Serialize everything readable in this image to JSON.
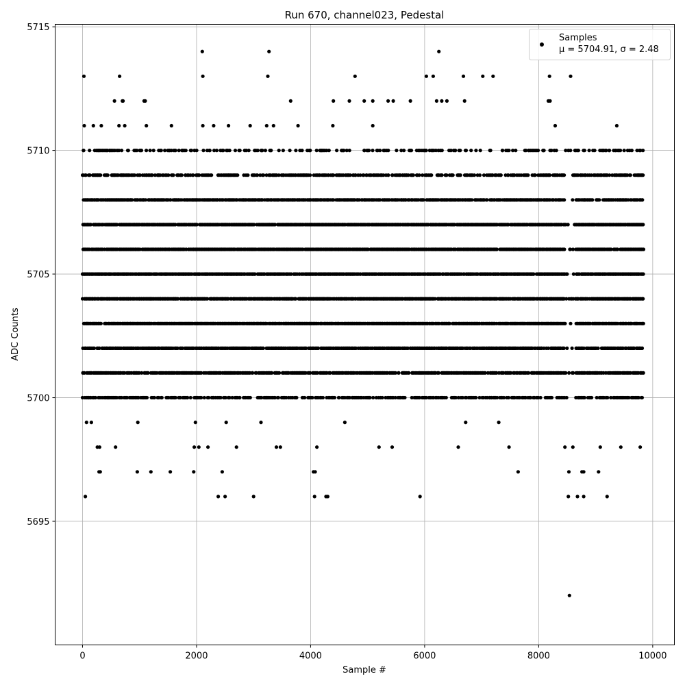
{
  "chart_data": {
    "type": "scatter",
    "title": "Run 670, channel023, Pedestal",
    "xlabel": "Sample #",
    "ylabel": "ADC Counts",
    "xlim": [
      -480,
      10380
    ],
    "ylim": [
      5690,
      5715.1
    ],
    "xticks": [
      0,
      2000,
      4000,
      6000,
      8000,
      10000
    ],
    "xtick_labels": [
      "0",
      "2000",
      "4000",
      "6000",
      "8000",
      "10000"
    ],
    "yticks": [
      5695,
      5700,
      5705,
      5710,
      5715
    ],
    "ytick_labels": [
      "5695",
      "5700",
      "5705",
      "5710",
      "5715"
    ],
    "grid": true,
    "legend_position": "top-right",
    "series": [
      {
        "name": "Samples",
        "legend_stats": "μ = 5704.91, σ = 2.48",
        "color": "#000000",
        "marker": "circle",
        "n_samples": 9840,
        "sample_range": [
          0,
          9839
        ],
        "value_levels": [
          5703,
          5704,
          5705,
          5706,
          5707,
          5702,
          5708,
          5701,
          5700,
          5709,
          5699,
          5710,
          5698,
          5711,
          5697,
          5712,
          5696,
          5713,
          5714
        ],
        "level_density": [
          0.9,
          0.9,
          0.9,
          0.9,
          0.88,
          0.82,
          0.8,
          0.72,
          0.55,
          0.58,
          0.18,
          0.3,
          0.08,
          0.12,
          0.05,
          0.05,
          0.03,
          0.03,
          0.01
        ],
        "points": [
          [
            20,
            5710
          ],
          [
            25,
            5713
          ],
          [
            30,
            5711
          ],
          [
            50,
            5696
          ],
          [
            70,
            5699
          ],
          [
            155,
            5699
          ],
          [
            190,
            5711
          ],
          [
            260,
            5698
          ],
          [
            290,
            5697
          ],
          [
            300,
            5698
          ],
          [
            310,
            5697
          ],
          [
            330,
            5711
          ],
          [
            560,
            5712
          ],
          [
            580,
            5698
          ],
          [
            640,
            5711
          ],
          [
            650,
            5713
          ],
          [
            700,
            5712
          ],
          [
            710,
            5712
          ],
          [
            740,
            5711
          ],
          [
            970,
            5699
          ],
          [
            960,
            5697
          ],
          [
            1080,
            5712
          ],
          [
            1100,
            5712
          ],
          [
            1120,
            5711
          ],
          [
            1200,
            5697
          ],
          [
            1210,
            5700
          ],
          [
            1540,
            5697
          ],
          [
            1560,
            5711
          ],
          [
            1950,
            5697
          ],
          [
            1960,
            5698
          ],
          [
            1980,
            5699
          ],
          [
            2040,
            5698
          ],
          [
            2100,
            5714
          ],
          [
            2110,
            5713
          ],
          [
            2110,
            5711
          ],
          [
            2200,
            5698
          ],
          [
            2300,
            5711
          ],
          [
            2380,
            5696
          ],
          [
            2450,
            5697
          ],
          [
            2500,
            5696
          ],
          [
            2520,
            5699
          ],
          [
            2560,
            5711
          ],
          [
            2700,
            5698
          ],
          [
            2940,
            5711
          ],
          [
            3000,
            5696
          ],
          [
            3130,
            5699
          ],
          [
            3230,
            5711
          ],
          [
            3250,
            5713
          ],
          [
            3270,
            5714
          ],
          [
            3350,
            5711
          ],
          [
            3400,
            5698
          ],
          [
            3470,
            5698
          ],
          [
            3650,
            5712
          ],
          [
            3780,
            5711
          ],
          [
            4050,
            5697
          ],
          [
            4080,
            5697
          ],
          [
            4070,
            5696
          ],
          [
            4110,
            5698
          ],
          [
            4270,
            5696
          ],
          [
            4300,
            5696
          ],
          [
            4400,
            5712
          ],
          [
            4390,
            5711
          ],
          [
            4600,
            5699
          ],
          [
            4680,
            5712
          ],
          [
            4780,
            5713
          ],
          [
            4940,
            5712
          ],
          [
            5090,
            5712
          ],
          [
            5090,
            5711
          ],
          [
            5200,
            5698
          ],
          [
            5360,
            5712
          ],
          [
            5430,
            5698
          ],
          [
            5450,
            5712
          ],
          [
            5750,
            5712
          ],
          [
            5920,
            5696
          ],
          [
            6030,
            5713
          ],
          [
            6150,
            5713
          ],
          [
            6210,
            5712
          ],
          [
            6250,
            5714
          ],
          [
            6300,
            5712
          ],
          [
            6390,
            5712
          ],
          [
            6590,
            5698
          ],
          [
            6680,
            5713
          ],
          [
            6700,
            5712
          ],
          [
            6720,
            5699
          ],
          [
            6900,
            5700
          ],
          [
            7020,
            5713
          ],
          [
            7200,
            5713
          ],
          [
            7300,
            5699
          ],
          [
            7480,
            5698
          ],
          [
            7640,
            5697
          ],
          [
            8170,
            5712
          ],
          [
            8190,
            5713
          ],
          [
            8200,
            5712
          ],
          [
            8290,
            5711
          ],
          [
            8460,
            5698
          ],
          [
            8520,
            5696
          ],
          [
            8530,
            5697
          ],
          [
            8560,
            5713
          ],
          [
            8540,
            5692
          ],
          [
            8600,
            5698
          ],
          [
            8680,
            5696
          ],
          [
            8760,
            5697
          ],
          [
            8790,
            5697
          ],
          [
            8790,
            5696
          ],
          [
            9050,
            5697
          ],
          [
            9080,
            5698
          ],
          [
            9200,
            5696
          ],
          [
            9370,
            5711
          ],
          [
            9440,
            5698
          ],
          [
            9780,
            5698
          ]
        ]
      }
    ]
  }
}
